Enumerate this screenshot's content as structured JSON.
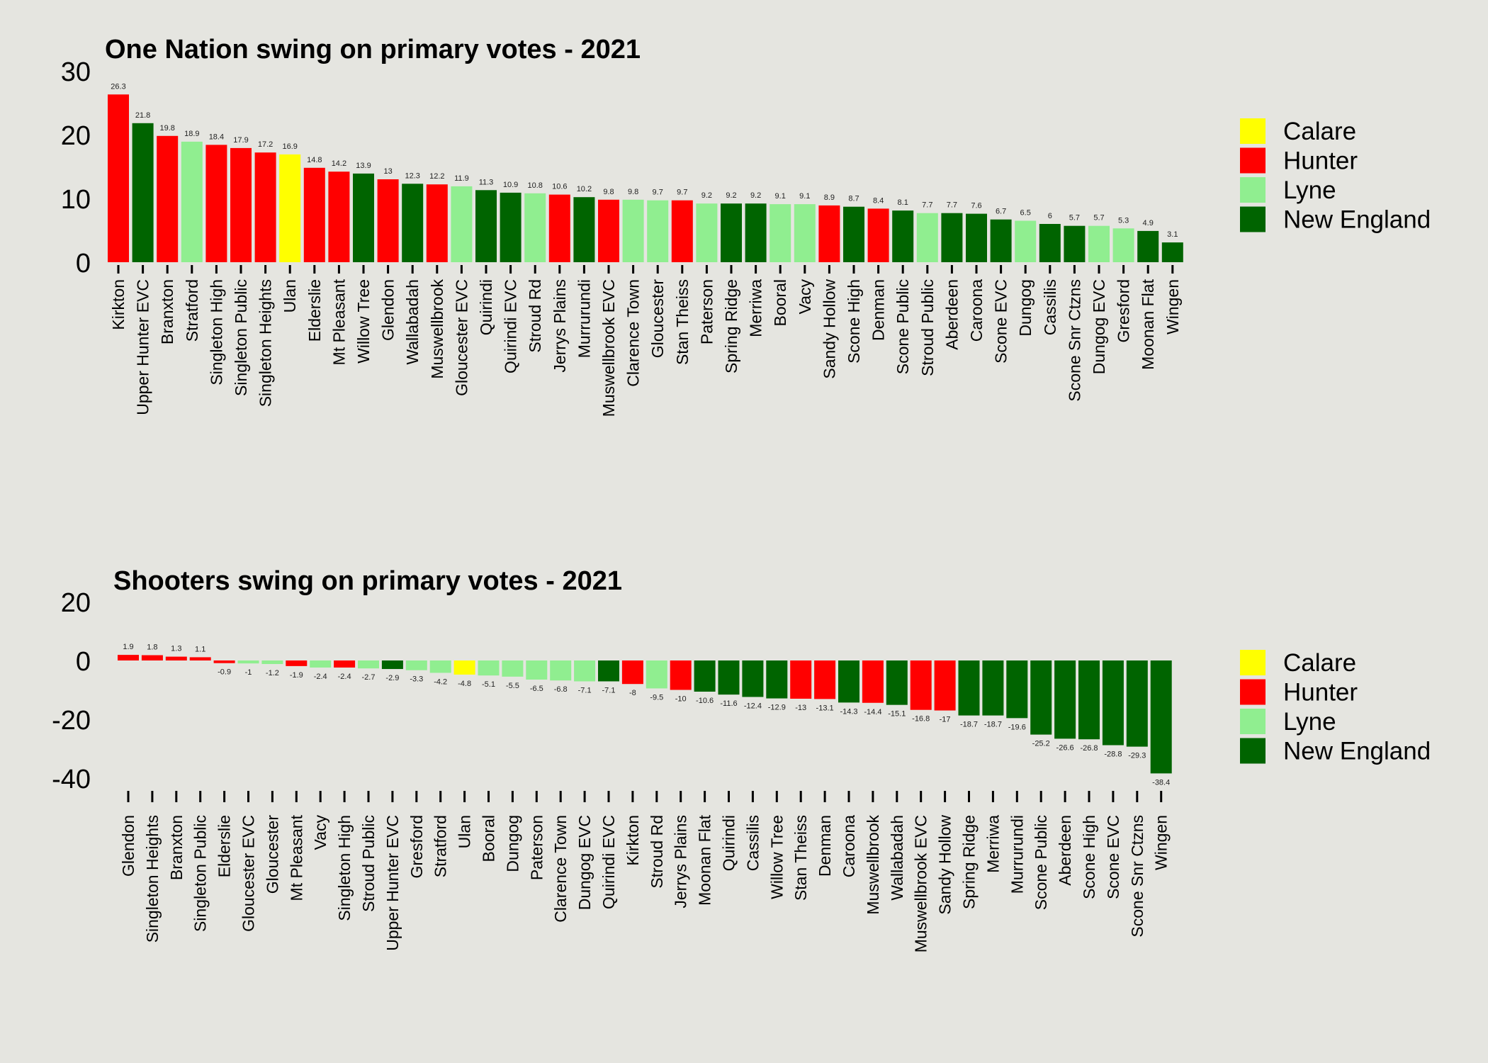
{
  "colors": {
    "Calare": "#ffff00",
    "Hunter": "#ff0000",
    "Lyne": "#90ee90",
    "New England": "#006400"
  },
  "chart_data": [
    {
      "type": "bar",
      "title": "One Nation swing on primary votes - 2021",
      "xlabel": "",
      "ylabel": "",
      "ylim": [
        0,
        30
      ],
      "yticks": [
        0,
        10,
        20,
        30
      ],
      "grid": false,
      "legend": {
        "position": "right",
        "entries": [
          "Calare",
          "Hunter",
          "Lyne",
          "New England"
        ]
      },
      "categories": [
        "Kirkton",
        "Upper Hunter EVC",
        "Branxton",
        "Stratford",
        "Singleton High",
        "Singleton Public",
        "Singleton Heights",
        "Ulan",
        "Elderslie",
        "Mt Pleasant",
        "Willow Tree",
        "Glendon",
        "Wallabadah",
        "Muswellbrook",
        "Gloucester EVC",
        "Quirindi",
        "Quirindi EVC",
        "Stroud Rd",
        "Jerrys Plains",
        "Murrurundi",
        "Muswellbrook EVC",
        "Clarence Town",
        "Gloucester",
        "Stan Theiss",
        "Paterson",
        "Spring Ridge",
        "Merriwa",
        "Booral",
        "Vacy",
        "Sandy Hollow",
        "Scone High",
        "Denman",
        "Scone Public",
        "Stroud Public",
        "Aberdeen",
        "Caroona",
        "Scone EVC",
        "Dungog",
        "Cassilis",
        "Scone Snr Ctzns",
        "Dungog EVC",
        "Gresford",
        "Moonan Flat",
        "Wingen"
      ],
      "values": [
        26.3,
        21.8,
        19.8,
        18.9,
        18.4,
        17.9,
        17.2,
        16.9,
        14.8,
        14.2,
        13.9,
        13,
        12.3,
        12.2,
        11.9,
        11.3,
        10.9,
        10.8,
        10.6,
        10.2,
        9.8,
        9.8,
        9.7,
        9.7,
        9.2,
        9.2,
        9.2,
        9.1,
        9.1,
        8.9,
        8.7,
        8.4,
        8.1,
        7.7,
        7.7,
        7.6,
        6.7,
        6.5,
        6,
        5.7,
        5.7,
        5.3,
        4.9,
        3.1
      ],
      "labels": [
        "26.3",
        "21.8",
        "19.8",
        "18.9",
        "18.4",
        "17.9",
        "17.2",
        "16.9",
        "14.8",
        "14.2",
        "13.9",
        "13",
        "12.3",
        "12.2",
        "11.9",
        "11.3",
        "10.9",
        "10.8",
        "10.6",
        "10.2",
        "9.8",
        "9.8",
        "9.7",
        "9.7",
        "9.2",
        "9.2",
        "9.2",
        "9.1",
        "9.1",
        "8.9",
        "8.7",
        "8.4",
        "8.1",
        "7.7",
        "7.7",
        "7.6",
        "6.7",
        "6.5",
        "6",
        "5.7",
        "5.7",
        "5.3",
        "4.9",
        "3.1"
      ],
      "groups": [
        "Hunter",
        "New England",
        "Hunter",
        "Lyne",
        "Hunter",
        "Hunter",
        "Hunter",
        "Calare",
        "Hunter",
        "Hunter",
        "New England",
        "Hunter",
        "New England",
        "Hunter",
        "Lyne",
        "New England",
        "New England",
        "Lyne",
        "Hunter",
        "New England",
        "Hunter",
        "Lyne",
        "Lyne",
        "Hunter",
        "Lyne",
        "New England",
        "New England",
        "Lyne",
        "Lyne",
        "Hunter",
        "New England",
        "Hunter",
        "New England",
        "Lyne",
        "New England",
        "New England",
        "New England",
        "Lyne",
        "New England",
        "New England",
        "Lyne",
        "Lyne",
        "New England",
        "New England"
      ]
    },
    {
      "type": "bar",
      "title": "Shooters swing on primary votes - 2021",
      "xlabel": "",
      "ylabel": "",
      "ylim": [
        -40,
        20
      ],
      "yticks": [
        -40,
        -20,
        0,
        20
      ],
      "grid": false,
      "legend": {
        "position": "right",
        "entries": [
          "Calare",
          "Hunter",
          "Lyne",
          "New England"
        ]
      },
      "categories": [
        "Glendon",
        "Singleton Heights",
        "Branxton",
        "Singleton Public",
        "Elderslie",
        "Gloucester EVC",
        "Gloucester",
        "Mt Pleasant",
        "Vacy",
        "Singleton High",
        "Stroud Public",
        "Upper Hunter EVC",
        "Gresford",
        "Stratford",
        "Ulan",
        "Booral",
        "Dungog",
        "Paterson",
        "Clarence Town",
        "Dungog EVC",
        "Quirindi EVC",
        "Kirkton",
        "Stroud Rd",
        "Jerrys Plains",
        "Moonan Flat",
        "Quirindi",
        "Cassilis",
        "Willow Tree",
        "Stan Theiss",
        "Denman",
        "Caroona",
        "Muswellbrook",
        "Wallabadah",
        "Muswellbrook EVC",
        "Sandy Hollow",
        "Spring Ridge",
        "Merriwa",
        "Murrurundi",
        "Scone Public",
        "Aberdeen",
        "Scone High",
        "Scone EVC",
        "Scone Snr Ctzns",
        "Wingen"
      ],
      "values": [
        1.9,
        1.8,
        1.3,
        1.1,
        -0.9,
        -1,
        -1.2,
        -1.9,
        -2.4,
        -2.4,
        -2.7,
        -2.9,
        -3.3,
        -4.2,
        -4.8,
        -5.1,
        -5.5,
        -6.5,
        -6.8,
        -7.1,
        -7.1,
        -8,
        -9.5,
        -10,
        -10.6,
        -11.6,
        -12.4,
        -12.9,
        -13,
        -13.1,
        -14.3,
        -14.4,
        -15.1,
        -16.8,
        -17,
        -18.7,
        -18.7,
        -19.6,
        -25.2,
        -26.6,
        -26.8,
        -28.8,
        -29.3,
        -38.4
      ],
      "labels": [
        "1.9",
        "1.8",
        "1.3",
        "1.1",
        "-0.9",
        "-1",
        "-1.2",
        "-1.9",
        "-2.4",
        "-2.4",
        "-2.7",
        "-2.9",
        "-3.3",
        "-4.2",
        "-4.8",
        "-5.1",
        "-5.5",
        "-6.5",
        "-6.8",
        "-7.1",
        "-7.1",
        "-8",
        "-9.5",
        "-10",
        "-10.6",
        "-11.6",
        "-12.4",
        "-12.9",
        "-13",
        "-13.1",
        "-14.3",
        "-14.4",
        "-15.1",
        "-16.8",
        "-17",
        "-18.7",
        "-18.7",
        "-19.6",
        "-25.2",
        "-26.6",
        "-26.8",
        "-28.8",
        "-29.3",
        "-38.4"
      ],
      "groups": [
        "Hunter",
        "Hunter",
        "Hunter",
        "Hunter",
        "Hunter",
        "Lyne",
        "Lyne",
        "Hunter",
        "Lyne",
        "Hunter",
        "Lyne",
        "New England",
        "Lyne",
        "Lyne",
        "Calare",
        "Lyne",
        "Lyne",
        "Lyne",
        "Lyne",
        "Lyne",
        "New England",
        "Hunter",
        "Lyne",
        "Hunter",
        "New England",
        "New England",
        "New England",
        "New England",
        "Hunter",
        "Hunter",
        "New England",
        "Hunter",
        "New England",
        "Hunter",
        "Hunter",
        "New England",
        "New England",
        "New England",
        "New England",
        "New England",
        "New England",
        "New England",
        "New England",
        "New England"
      ]
    }
  ]
}
